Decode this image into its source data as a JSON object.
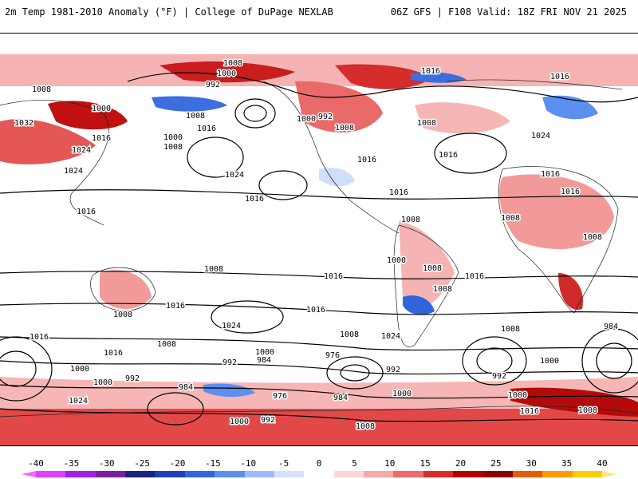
{
  "header": {
    "title_left": "2m Temp 1981-2010 Anomaly (°F) | College of DuPage NEXLAB",
    "title_right": "06Z GFS | F108 Valid: 18Z FRI NOV 21 2025"
  },
  "colorbar": {
    "ticks": [
      "-40",
      "-35",
      "-30",
      "-25",
      "-20",
      "-15",
      "-10",
      "-5",
      "0",
      "5",
      "10",
      "15",
      "20",
      "25",
      "30",
      "35",
      "40"
    ],
    "colors": [
      "#e040fb",
      "#a020f0",
      "#7a1fa2",
      "#1a237e",
      "#1f3fbf",
      "#2f66d9",
      "#5b8ff0",
      "#9dbcf7",
      "#d6e4fb",
      "#ffffff",
      "#ffd6d6",
      "#f7a8a8",
      "#ef6b6b",
      "#d92b2b",
      "#b00000",
      "#8a0000",
      "#e65c00",
      "#ff9900",
      "#ffcc00"
    ],
    "under_color": "#f06cf0",
    "over_color": "#ffe680"
  },
  "isobars": [
    {
      "v": "1008"
    },
    {
      "v": "1000"
    },
    {
      "v": "992"
    },
    {
      "v": "1016"
    },
    {
      "v": "1008"
    },
    {
      "v": "1000"
    },
    {
      "v": "1032"
    },
    {
      "v": "1016"
    },
    {
      "v": "1024"
    },
    {
      "v": "1008"
    },
    {
      "v": "1016"
    },
    {
      "v": "1000"
    },
    {
      "v": "1008"
    },
    {
      "v": "1024"
    },
    {
      "v": "1016"
    },
    {
      "v": "1024"
    },
    {
      "v": "1016"
    },
    {
      "v": "1000"
    },
    {
      "v": "992"
    },
    {
      "v": "1008"
    },
    {
      "v": "1016"
    },
    {
      "v": "1016"
    },
    {
      "v": "1008"
    },
    {
      "v": "1016"
    },
    {
      "v": "1008"
    },
    {
      "v": "1016"
    },
    {
      "v": "1024"
    },
    {
      "v": "1016"
    },
    {
      "v": "1016"
    },
    {
      "v": "1008"
    },
    {
      "v": "1016"
    },
    {
      "v": "1008"
    },
    {
      "v": "1008"
    },
    {
      "v": "1016"
    },
    {
      "v": "1008"
    },
    {
      "v": "1016"
    },
    {
      "v": "1016"
    },
    {
      "v": "1008"
    },
    {
      "v": "1024"
    },
    {
      "v": "1016"
    },
    {
      "v": "1008"
    },
    {
      "v": "1024"
    },
    {
      "v": "1016"
    },
    {
      "v": "1008"
    },
    {
      "v": "1008"
    },
    {
      "v": "984"
    },
    {
      "v": "1000"
    },
    {
      "v": "984"
    },
    {
      "v": "976"
    },
    {
      "v": "992"
    },
    {
      "v": "992"
    },
    {
      "v": "1000"
    },
    {
      "v": "1000"
    },
    {
      "v": "1000"
    },
    {
      "v": "992"
    },
    {
      "v": "984"
    },
    {
      "v": "976"
    },
    {
      "v": "984"
    },
    {
      "v": "1000"
    },
    {
      "v": "992"
    },
    {
      "v": "1000"
    },
    {
      "v": "1016"
    },
    {
      "v": "1008"
    },
    {
      "v": "1024"
    },
    {
      "v": "1000"
    },
    {
      "v": "992"
    },
    {
      "v": "1008"
    },
    {
      "v": "1000"
    },
    {
      "v": "1008"
    }
  ],
  "palette": {
    "warm_light": "#fcd2d2",
    "warm_mid": "#f29a9a",
    "warm_strong": "#e24848",
    "warm_deep": "#b40a0a",
    "cool_light": "#cfdff9",
    "cool_mid": "#86aef0",
    "cool_strong": "#3c6ee0",
    "coast": "#222222"
  }
}
